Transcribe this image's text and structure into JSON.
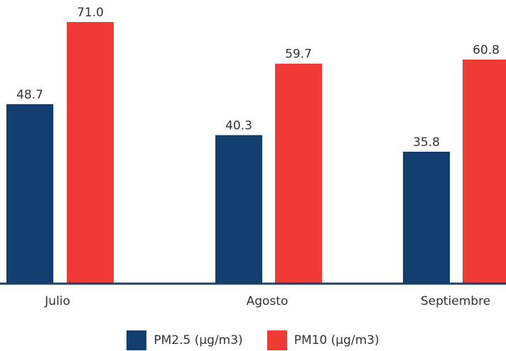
{
  "chart_data": {
    "type": "bar",
    "categories": [
      "Julio",
      "Agosto",
      "Septiembre"
    ],
    "series": [
      {
        "name": "PM2.5 (μg/m3)",
        "values": [
          48.7,
          40.3,
          35.8
        ],
        "value_labels": [
          "48.7",
          "40.3",
          "35.8"
        ],
        "color": "#123f6f"
      },
      {
        "name": "PM10 (μg/m3)",
        "values": [
          71.0,
          59.7,
          60.8
        ],
        "value_labels": [
          "71.0",
          "59.7",
          "60.8"
        ],
        "color": "#ef3a36"
      }
    ],
    "ylim": [
      0,
      71.0
    ],
    "grid": false,
    "legend_position": "bottom",
    "baseline_color": "#1f3f66"
  }
}
